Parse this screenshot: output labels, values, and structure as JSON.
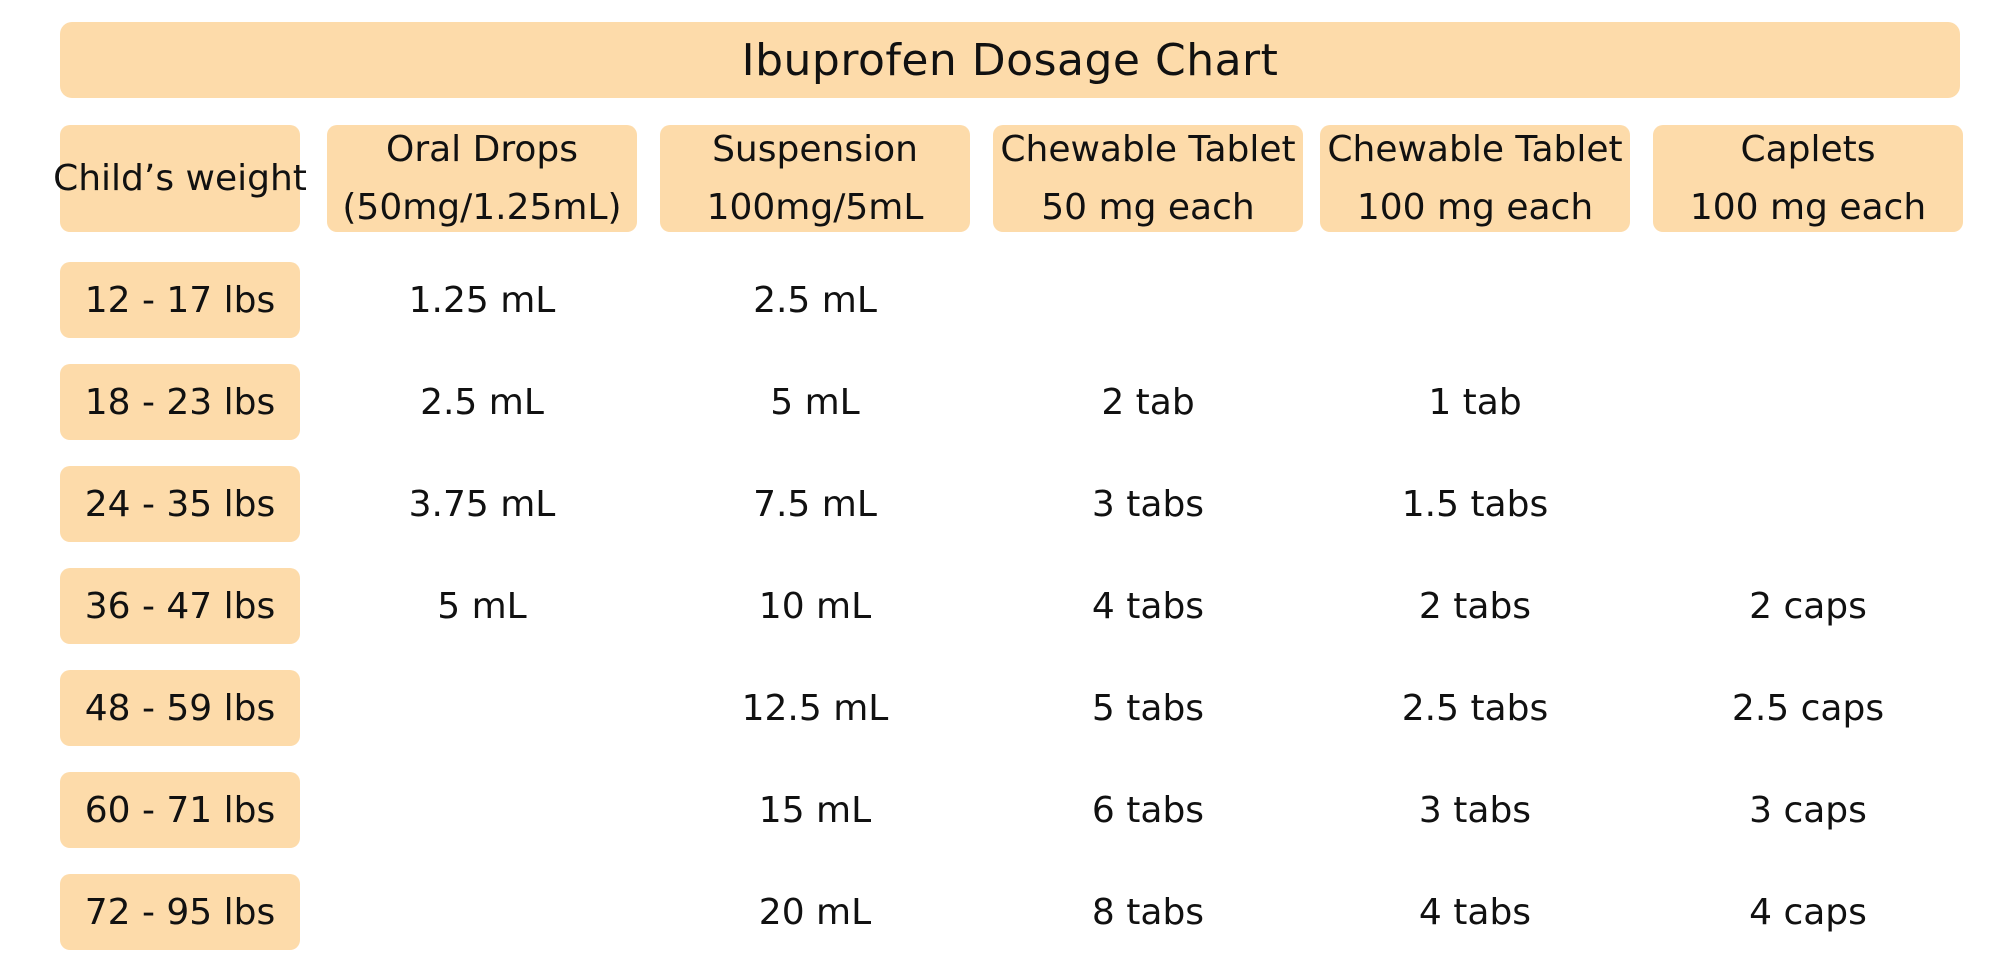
{
  "title": "Ibuprofen Dosage Chart",
  "headers": {
    "weight": "Child’s weight",
    "columns": [
      {
        "line1": "Oral Drops",
        "line2": "(50mg/1.25mL)"
      },
      {
        "line1": "Suspension",
        "line2": "100mg/5mL"
      },
      {
        "line1": "Chewable Tablet",
        "line2": "50 mg each"
      },
      {
        "line1": "Chewable Tablet",
        "line2": "100 mg each"
      },
      {
        "line1": "Caplets",
        "line2": "100 mg each"
      }
    ]
  },
  "rows": [
    {
      "weight": "12 - 17 lbs",
      "cells": [
        "1.25 mL",
        "2.5 mL",
        "",
        "",
        ""
      ]
    },
    {
      "weight": "18 - 23 lbs",
      "cells": [
        "2.5 mL",
        "5 mL",
        "2 tab",
        "1 tab",
        ""
      ]
    },
    {
      "weight": "24 - 35 lbs",
      "cells": [
        "3.75 mL",
        "7.5 mL",
        "3 tabs",
        "1.5 tabs",
        ""
      ]
    },
    {
      "weight": "36 - 47 lbs",
      "cells": [
        "5 mL",
        "10 mL",
        "4 tabs",
        "2 tabs",
        "2 caps"
      ]
    },
    {
      "weight": "48 - 59 lbs",
      "cells": [
        "",
        "12.5 mL",
        "5 tabs",
        "2.5 tabs",
        "2.5 caps"
      ]
    },
    {
      "weight": "60 - 71 lbs",
      "cells": [
        "",
        "15 mL",
        "6 tabs",
        "3 tabs",
        "3 caps"
      ]
    },
    {
      "weight": "72 - 95 lbs",
      "cells": [
        "",
        "20 mL",
        "8 tabs",
        "4 tabs",
        "4 caps"
      ]
    }
  ],
  "colors": {
    "header_fill": "#fddbaa",
    "text": "#111111"
  }
}
